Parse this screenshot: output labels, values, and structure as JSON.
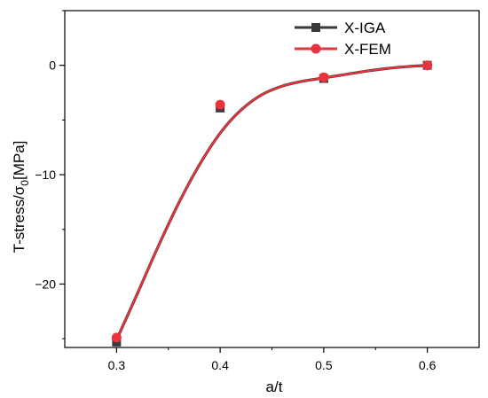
{
  "chart_data": {
    "type": "line",
    "xlabel": "a/t",
    "ylabel_prefix": "T-stress/",
    "ylabel_sigma": "σ",
    "ylabel_sub": "0",
    "ylabel_suffix": "[MPa]",
    "xlim": [
      0.25,
      0.65
    ],
    "ylim": [
      -25.8,
      5.0
    ],
    "x_ticks": [
      0.3,
      0.4,
      0.5,
      0.6
    ],
    "x_tick_labels": [
      "0.3",
      "0.4",
      "0.5",
      "0.6"
    ],
    "y_ticks": [
      -20,
      -10,
      0
    ],
    "y_tick_labels": [
      "−20",
      "−10",
      "0"
    ],
    "grid": false,
    "legend_position": "top-right",
    "series": [
      {
        "name": "X-IGA",
        "marker": "square",
        "color": "#3a3a3a",
        "x": [
          0.3,
          0.4,
          0.5,
          0.6
        ],
        "values": [
          -25.3,
          -3.9,
          -1.2,
          0.0
        ]
      },
      {
        "name": "X-FEM",
        "marker": "circle",
        "color": "#e8323c",
        "x": [
          0.3,
          0.4,
          0.5,
          0.6
        ],
        "values": [
          -24.9,
          -3.6,
          -1.1,
          0.0
        ]
      }
    ],
    "fit_curve": {
      "x": [
        0.3,
        0.32,
        0.34,
        0.36,
        0.38,
        0.4,
        0.42,
        0.44,
        0.46,
        0.48,
        0.5,
        0.52,
        0.54,
        0.56,
        0.58,
        0.6
      ],
      "values": [
        -25.1,
        -20.9,
        -16.6,
        -12.6,
        -9.1,
        -6.2,
        -4.1,
        -2.7,
        -1.9,
        -1.45,
        -1.15,
        -0.85,
        -0.55,
        -0.3,
        -0.12,
        0.0
      ]
    }
  }
}
